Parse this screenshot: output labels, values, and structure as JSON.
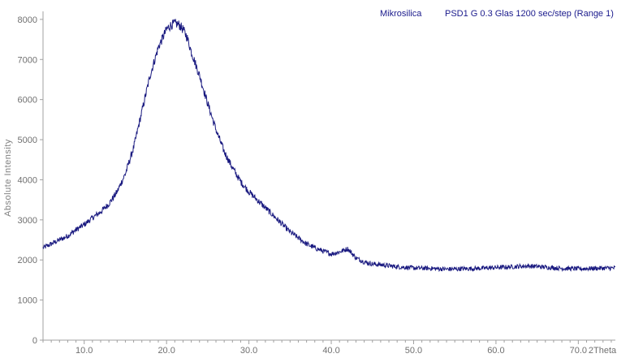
{
  "chart_data": {
    "type": "line",
    "title": "",
    "xlabel": "2Theta",
    "ylabel": "Absolute Intensity",
    "xlim": [
      5.0,
      74.5
    ],
    "ylim": [
      0,
      8200
    ],
    "x_ticks": [
      10,
      20,
      30,
      40,
      50,
      60,
      70
    ],
    "x_tick_labels": [
      "10.0",
      "20.0",
      "30.0",
      "40.0",
      "50.0",
      "60.0",
      "70.0"
    ],
    "y_ticks": [
      0,
      1000,
      2000,
      3000,
      4000,
      5000,
      6000,
      7000,
      8000
    ],
    "y_tick_labels": [
      "0",
      "1000",
      "2000",
      "3000",
      "4000",
      "5000",
      "6000",
      "7000",
      "8000"
    ],
    "grid": false,
    "legend_position": "top-right",
    "series": [
      {
        "name": "Mikrosilica",
        "legend_extra": "PSD1 G 0.3 Glas 1200 sec/step (Range 1)",
        "color": "#1a1a80",
        "noise_amplitude": 60,
        "x": [
          5,
          6,
          7,
          8,
          9,
          10,
          11,
          12,
          13,
          14,
          15,
          16,
          17,
          18,
          19,
          20,
          20.5,
          21,
          21.5,
          22,
          22.5,
          23,
          24,
          25,
          26,
          27,
          28,
          29,
          30,
          31,
          32,
          33,
          34,
          35,
          36,
          37,
          38,
          39,
          40,
          41,
          42,
          43,
          44,
          45,
          46,
          48,
          50,
          52,
          54,
          56,
          58,
          60,
          62,
          64,
          66,
          68,
          70,
          72,
          74.5
        ],
        "y": [
          2300,
          2400,
          2500,
          2600,
          2750,
          2880,
          3050,
          3200,
          3400,
          3700,
          4150,
          4800,
          5700,
          6600,
          7300,
          7750,
          7850,
          7900,
          7870,
          7750,
          7550,
          7200,
          6600,
          5900,
          5250,
          4700,
          4300,
          3950,
          3700,
          3500,
          3300,
          3100,
          2900,
          2700,
          2550,
          2400,
          2300,
          2220,
          2150,
          2200,
          2280,
          2050,
          1950,
          1900,
          1880,
          1830,
          1800,
          1790,
          1770,
          1780,
          1790,
          1810,
          1830,
          1850,
          1820,
          1790,
          1780,
          1790,
          1800
        ]
      }
    ]
  }
}
